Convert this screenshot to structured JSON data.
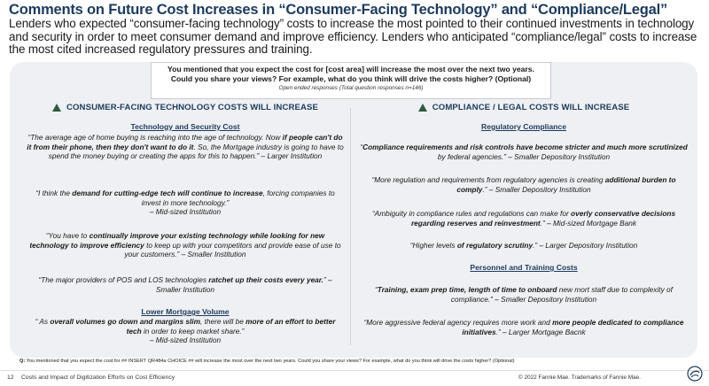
{
  "header": {
    "title": "Comments on Future Cost Increases in “Consumer-Facing Technology” and “Compliance/Legal”",
    "subtitle": "Lenders who expected “consumer-facing technology” costs to increase the most pointed to their continued investments in technology and security in order to meet consumer demand and improve efficiency. Lenders who anticipated “compliance/legal” costs to increase the most cited increased regulatory pressures and training."
  },
  "question": {
    "line1": "You mentioned that you expect the cost for [cost area] will increase the most over the next two years.",
    "line2": "Could you share your views? For example, what do you think will drive the costs higher? (Optional)",
    "line3": "Open ended responses (Total question responses n=146)"
  },
  "left": {
    "heading": "CONSUMER-FACING TECHNOLOGY COSTS WILL INCREASE",
    "sections": [
      {
        "title": "Technology and Security Cost",
        "quotes": [
          {
            "p1": "“The average age of home buying is reaching into the age of technology.  Now ",
            "b1": "if people can't do it from their phone, then they don't want to do it",
            "p2": ". So, the Mortgage industry is going to have to spend the money buying or creating the apps for this to happen.” – Larger Institution",
            "b2": "",
            "p3": "",
            "src": ""
          },
          {
            "p1": "“I think the ",
            "b1": "demand for cutting-edge tech will continue to increase",
            "p2": ", forcing companies to invest in more technology.”",
            "b2": "",
            "p3": "",
            "src": "– Mid-sized Institution"
          },
          {
            "p1": "“You have to ",
            "b1": "continually improve your existing technology while looking for new technology to improve efficiency",
            "p2": " to keep up with your competitors and provide ease of use to your customers.” – Smaller Institution",
            "b2": "",
            "p3": "",
            "src": ""
          },
          {
            "p1": "“The major providers of POS and LOS technologies ",
            "b1": "ratchet up their costs every year.",
            "p2": "” – Smaller Institution",
            "b2": "",
            "p3": "",
            "src": ""
          }
        ]
      },
      {
        "title": "Lower Mortgage Volume",
        "quotes": [
          {
            "p1": "“ As ",
            "b1": "overall volumes go down and margins slim",
            "p2": ", there will be ",
            "b2": "more of an effort to better tech",
            "p3": " in order to keep market share.”",
            "src": "– Mid-sized Institution"
          }
        ]
      }
    ]
  },
  "right": {
    "heading": "COMPLIANCE / LEGAL COSTS WILL INCREASE",
    "sections": [
      {
        "title": "Regulatory Compliance",
        "quotes": [
          {
            "p1": "“",
            "b1": "Compliance requirements and risk controls have become stricter and much more scrutinized",
            "p2": " by federal agencies.” – Smaller Depository Institution",
            "b2": "",
            "p3": ""
          },
          {
            "p1": "“More regulation and requirements from regulatory agencies is creating ",
            "b1": "additional burden to comply",
            "p2": ".” – Smaller Depository Institution",
            "b2": "",
            "p3": ""
          },
          {
            "p1": "“Ambiguity in compliance rules and regulations can make for ",
            "b1": "overly conservative decisions regarding reserves and reinvestment",
            "p2": ".” – Mid-sized Mortgage Bank",
            "b2": "",
            "p3": ""
          },
          {
            "p1": "“Higher levels ",
            "b1": "of regulatory scrutiny",
            "p2": ".” – Larger Depository Institution",
            "b2": "",
            "p3": ""
          }
        ]
      },
      {
        "title": "Personnel and Training Costs",
        "quotes": [
          {
            "p1": "“",
            "b1": "Training, exam prep time, length of time to onboard",
            "p2": " new mort staff due to complexity of compliance.” – Smaller Depository Institution",
            "b2": "",
            "p3": ""
          },
          {
            "p1": "“More aggressive federal agency requires more work and ",
            "b1": "more people dedicated to compliance initiatives",
            "p2": ".” – Larger Mortgage Bacnk",
            "b2": "",
            "p3": ""
          }
        ]
      }
    ]
  },
  "footnote": {
    "label": "Q:",
    "text": " You mentioned that you expect the cost for ## INSERT QR484a CHOICE ## will increase the most over the next two years. Could you share your views? For example, what do you think will drive the costs higher? (Optional)"
  },
  "footer": {
    "page_number": "12",
    "title": "Costs and Impact of Digitization Efforts on Cost Efficiency",
    "copyright": "© 2022 Fannie Mae.  Trademarks of Fannie Mae.",
    "logo_icon": "fannie-mae-logo-icon"
  },
  "colors": {
    "title": "#1d3a5c",
    "accent_triangle": "#2e5a40",
    "panel_bg": "#eef0f3"
  }
}
